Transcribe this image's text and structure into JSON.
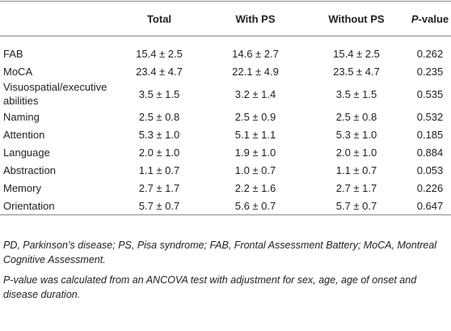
{
  "table": {
    "header": [
      "",
      "Total",
      "With PS",
      "Without PS",
      {
        "italic": "P",
        "rest": "-value"
      }
    ],
    "rows": [
      [
        "FAB",
        "15.4 ± 2.5",
        "14.6 ± 2.7",
        "15.4 ± 2.5",
        "0.262"
      ],
      [
        "MoCA",
        "23.4 ± 4.7",
        "22.1 ± 4.9",
        "23.5 ± 4.7",
        "0.235"
      ],
      [
        "Visuospatial/executive abilities",
        "3.5 ± 1.5",
        "3.2 ± 1.4",
        "3.5 ± 1.5",
        "0.535"
      ],
      [
        "Naming",
        "2.5 ± 0.8",
        "2.5 ± 0.9",
        "2.5 ± 0.8",
        "0.532"
      ],
      [
        "Attention",
        "5.3 ± 1.0",
        "5.1 ± 1.1",
        "5.3 ± 1.0",
        "0.185"
      ],
      [
        "Language",
        "2.0 ± 1.0",
        "1.9 ± 1.0",
        "2.0 ± 1.0",
        "0.884"
      ],
      [
        "Abstraction",
        "1.1 ± 0.7",
        "1.0 ± 0.7",
        "1.1 ± 0.7",
        "0.053"
      ],
      [
        "Memory",
        "2.7 ± 1.7",
        "2.2 ± 1.6",
        "2.7 ± 1.7",
        "0.226"
      ],
      [
        "Orientation",
        "5.7 ± 0.7",
        "5.6 ± 0.7",
        "5.7 ± 0.7",
        "0.647"
      ]
    ]
  },
  "notes": [
    "PD, Parkinson’s disease; PS, Pisa syndrome; FAB, Frontal Assessment Battery; MoCA, Montreal Cognitive Assessment.",
    "P-value was calculated from an ANCOVA test with adjustment for sex, age, age of onset and disease duration."
  ]
}
